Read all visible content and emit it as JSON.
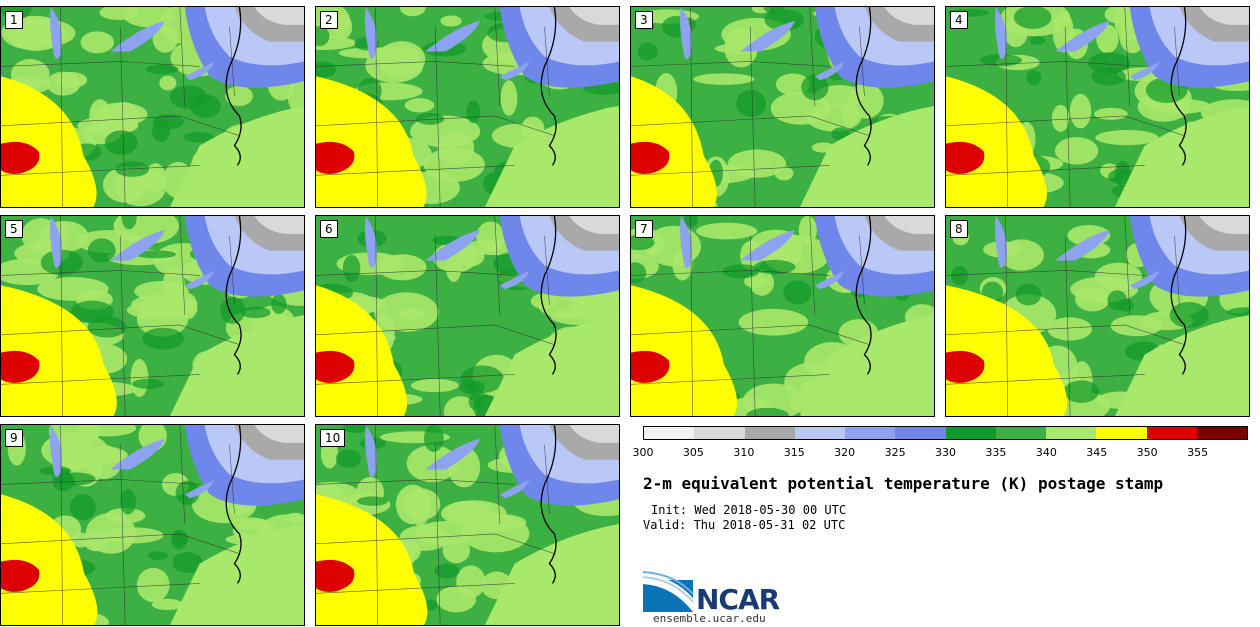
{
  "title": "2-m equivalent potential temperature (K) postage stamp",
  "init": "Init: Wed 2018-05-30 00 UTC",
  "valid": "Valid: Thu 2018-05-31 02 UTC",
  "logo_text": "NCAR",
  "site_url": "ensemble.ucar.edu",
  "members": [
    "1",
    "2",
    "3",
    "4",
    "5",
    "6",
    "7",
    "8",
    "9",
    "10"
  ],
  "colorbar": {
    "ticks": [
      "300",
      "305",
      "310",
      "315",
      "320",
      "325",
      "330",
      "335",
      "340",
      "345",
      "350",
      "355"
    ],
    "colors": [
      "#f2f2f2",
      "#d9d9d9",
      "#a9a9a9",
      "#b9c8f7",
      "#8da3f0",
      "#6f86ea",
      "#119a2a",
      "#3cb043",
      "#a8e86a",
      "#ffff00",
      "#dd0000",
      "#7a0000"
    ]
  }
}
